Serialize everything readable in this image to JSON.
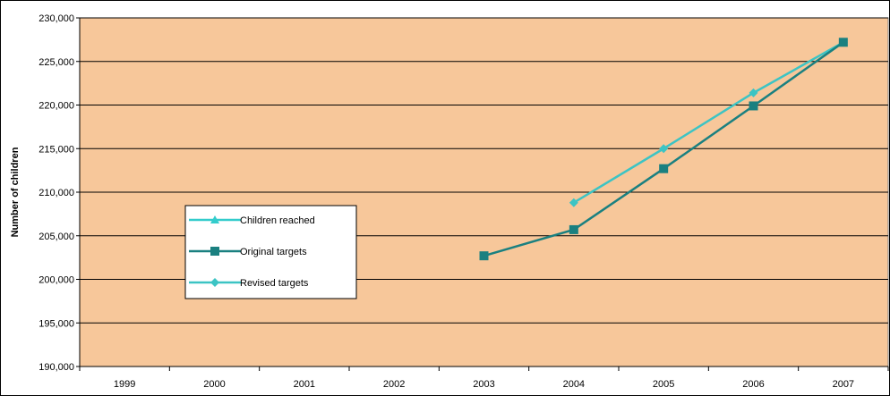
{
  "chart_data": {
    "type": "line",
    "title": "",
    "xlabel": "",
    "ylabel": "Number of children",
    "categories": [
      "1999",
      "2000",
      "2001",
      "2002",
      "2003",
      "2004",
      "2005",
      "2006",
      "2007"
    ],
    "ylim": [
      190000,
      230000
    ],
    "yticks": [
      190000,
      195000,
      200000,
      205000,
      210000,
      215000,
      220000,
      225000,
      230000
    ],
    "ytick_labels": [
      "190,000",
      "195,000",
      "200,000",
      "205,000",
      "210,000",
      "215,000",
      "220,000",
      "225,000",
      "230,000"
    ],
    "grid": true,
    "plot_background": "#f7c79a",
    "legend_position": "center-left",
    "series": [
      {
        "name": "Children reached",
        "color": "#33cccc",
        "marker": "triangle",
        "values": [
          null,
          null,
          null,
          null,
          null,
          null,
          null,
          null,
          227200
        ]
      },
      {
        "name": "Original targets",
        "color": "#1a8080",
        "marker": "square",
        "values": [
          null,
          null,
          null,
          null,
          202700,
          205700,
          212700,
          219900,
          227200
        ]
      },
      {
        "name": "Revised targets",
        "color": "#3cc4c4",
        "marker": "diamond",
        "values": [
          null,
          null,
          null,
          null,
          null,
          208800,
          215000,
          221400,
          227200
        ]
      }
    ]
  }
}
